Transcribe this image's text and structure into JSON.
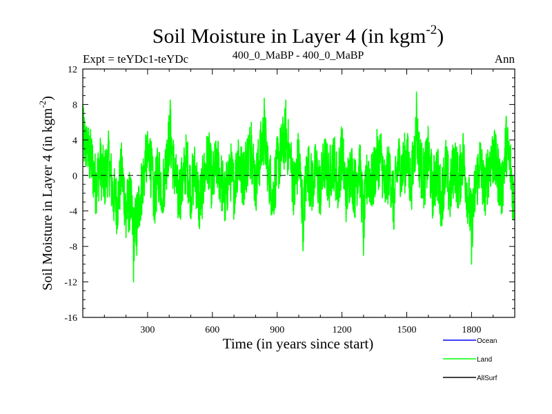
{
  "chart_data": {
    "type": "line",
    "title": "Soil Moisture in Layer 4 (in kgm",
    "title_sup": "-2",
    "title_close": ")",
    "subtitle_left": "Expt = teYDc1-teYDc",
    "subtitle_center": "400_0_MaBP - 400_0_MaBP",
    "subtitle_right": "Ann",
    "xlabel": "Time (in years since start)",
    "ylabel": "Soil Moisture in Layer 4 (in kgm",
    "ylabel_sup": "-2",
    "ylabel_close": ")",
    "xlim": [
      0,
      2000
    ],
    "ylim": [
      -16,
      12
    ],
    "x_ticks": [
      300,
      600,
      900,
      1200,
      1500,
      1800
    ],
    "x_tick_labels": [
      "300",
      "600",
      "900",
      "1200",
      "1500",
      "1800"
    ],
    "y_ticks": [
      -16,
      -12,
      -8,
      -4,
      0,
      4,
      8,
      12
    ],
    "y_tick_labels": [
      "-16",
      "-12",
      "-8",
      "-4",
      "0",
      "4",
      "8",
      "12"
    ],
    "zero_line": 0,
    "series": [
      {
        "name": "Ocean",
        "color": "#0000ff",
        "visible": false,
        "x": [],
        "values": []
      },
      {
        "name": "Land",
        "color": "#00ff00",
        "visible": true,
        "x": [
          0,
          20,
          40,
          60,
          80,
          100,
          120,
          140,
          160,
          180,
          200,
          220,
          235,
          250,
          270,
          290,
          310,
          330,
          350,
          370,
          390,
          405,
          420,
          440,
          460,
          480,
          500,
          520,
          540,
          560,
          580,
          600,
          620,
          640,
          660,
          680,
          700,
          720,
          740,
          760,
          780,
          800,
          820,
          840,
          860,
          880,
          900,
          920,
          940,
          960,
          980,
          1000,
          1020,
          1040,
          1060,
          1080,
          1100,
          1120,
          1140,
          1160,
          1180,
          1200,
          1220,
          1240,
          1260,
          1280,
          1300,
          1320,
          1340,
          1360,
          1380,
          1400,
          1420,
          1440,
          1460,
          1480,
          1500,
          1520,
          1545,
          1560,
          1580,
          1600,
          1620,
          1640,
          1660,
          1680,
          1700,
          1720,
          1740,
          1760,
          1780,
          1800,
          1820,
          1840,
          1860,
          1880,
          1900,
          1920,
          1940,
          1960,
          1980,
          1995
        ],
        "values": [
          8,
          5,
          3,
          -2,
          2,
          -1,
          3,
          -4,
          -6,
          1,
          -7,
          -5,
          -12,
          -9,
          -3,
          2,
          4,
          -5,
          1,
          -3,
          4,
          8.5,
          2,
          -4,
          -2,
          3,
          -3,
          1,
          -6,
          -1,
          4,
          -2,
          3,
          -1,
          -5,
          2,
          -3,
          4,
          -1,
          3,
          6,
          -2,
          4,
          8.7,
          1,
          -4,
          2,
          5,
          8.5,
          3,
          -3,
          4,
          -8.5,
          2,
          -2,
          1,
          -3,
          3,
          -1,
          4,
          -2,
          5,
          -4,
          2,
          -3,
          3,
          -9,
          1,
          -2,
          3,
          4,
          -3,
          2,
          -6,
          3,
          1,
          4,
          -2,
          9.4,
          3,
          -1,
          4,
          -3,
          1,
          -5,
          2,
          -4,
          3,
          -2,
          4,
          -3,
          -10,
          -2,
          3,
          -4,
          2,
          4,
          1,
          -3,
          6.5,
          2,
          -5
        ]
      },
      {
        "name": "AllSurf",
        "color": "#000000",
        "visible": false,
        "x": [],
        "values": []
      }
    ],
    "legend_position": "bottom-right"
  }
}
